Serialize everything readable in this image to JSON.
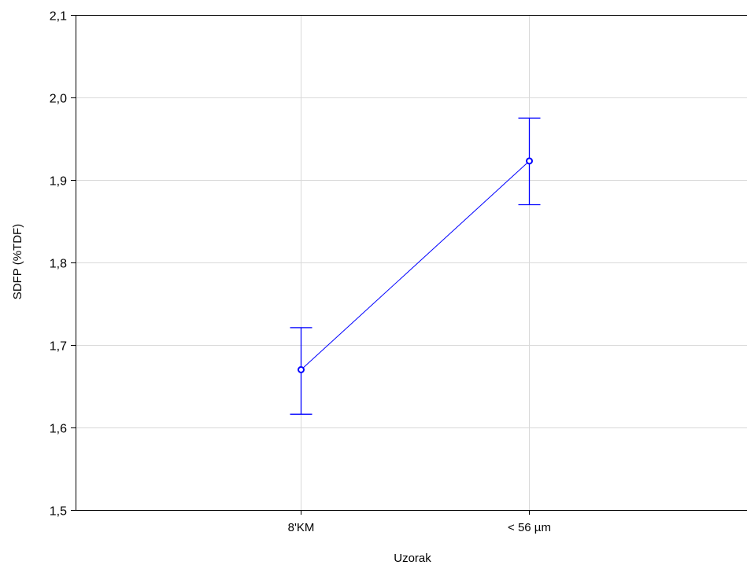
{
  "chart_data": {
    "type": "line",
    "title": "",
    "xlabel": "Uzorak",
    "ylabel": "SDFP (%TDF)",
    "categories": [
      "8'KM",
      "< 56 µm"
    ],
    "series": [
      {
        "values": [
          1.67,
          1.923
        ],
        "error_low": [
          1.616,
          1.87
        ],
        "error_high": [
          1.721,
          1.975
        ]
      }
    ],
    "ylim": [
      1.5,
      2.1
    ],
    "yticks": [
      1.5,
      1.6,
      1.7,
      1.8,
      1.9,
      2.0,
      2.1
    ],
    "ytick_labels": [
      "1,5",
      "1,6",
      "1,7",
      "1,8",
      "1,9",
      "2,0",
      "2,1"
    ],
    "grid": true,
    "colors": {
      "series": "#0000ff",
      "grid": "#d9d9d9",
      "axis": "#000000"
    }
  }
}
